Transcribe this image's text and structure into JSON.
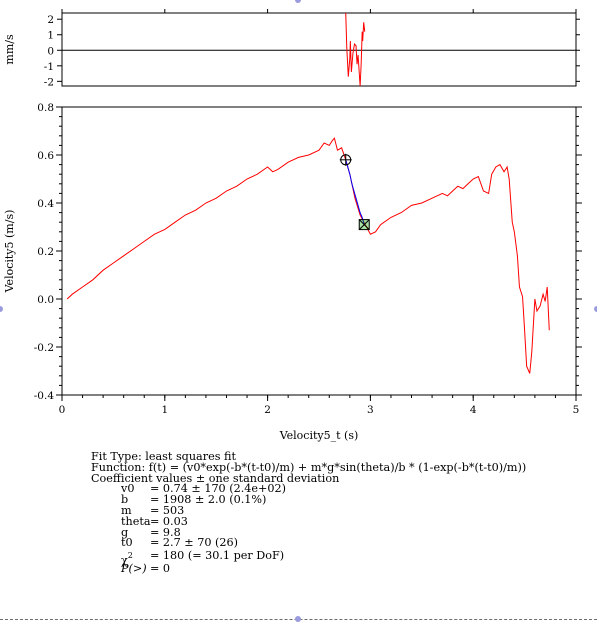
{
  "chart_data": [
    {
      "type": "line",
      "panel": "residuals",
      "ylabel": "mm/s",
      "yticks": [
        2,
        1,
        0,
        -1,
        -2
      ],
      "ylim": [
        -2.3,
        2.4
      ],
      "xlim": [
        0,
        5
      ],
      "zero_line": true,
      "series": [
        {
          "color": "#ff0000",
          "x": [
            2.76,
            2.77,
            2.785,
            2.8,
            2.805,
            2.815,
            2.83,
            2.845,
            2.86,
            2.87,
            2.88,
            2.9,
            2.91,
            2.92,
            2.925,
            2.935,
            2.945
          ],
          "y": [
            2.4,
            0.2,
            -1.7,
            -0.5,
            0.6,
            -1.4,
            -0.2,
            0.4,
            0.3,
            -0.9,
            -0.3,
            -2.3,
            -0.9,
            1.2,
            0.6,
            1.8,
            1.2
          ]
        }
      ]
    },
    {
      "type": "line",
      "panel": "main",
      "xlabel": "Velocity5_t (s)",
      "ylabel": "Velocity5 (m/s)",
      "xlim": [
        0,
        5
      ],
      "ylim": [
        -0.4,
        0.8
      ],
      "xticks": [
        0,
        1,
        2,
        3,
        4,
        5
      ],
      "yticks": [
        0.8,
        0.6,
        0.4,
        0.2,
        0.0,
        -0.2,
        -0.4
      ],
      "ytick_labels": [
        "0.8",
        "0.6",
        "0.4",
        "0.2",
        "0.0",
        "-0.2",
        "-0.4"
      ],
      "series": [
        {
          "color": "#ff0000",
          "x": [
            0.05,
            0.1,
            0.2,
            0.3,
            0.4,
            0.5,
            0.6,
            0.7,
            0.8,
            0.9,
            1.0,
            1.1,
            1.2,
            1.3,
            1.4,
            1.5,
            1.6,
            1.7,
            1.8,
            1.9,
            2.0,
            2.05,
            2.1,
            2.2,
            2.3,
            2.4,
            2.5,
            2.55,
            2.6,
            2.63,
            2.65,
            2.68,
            2.72,
            2.76,
            2.8,
            2.85,
            2.9,
            2.95,
            3.0,
            3.05,
            3.1,
            3.2,
            3.3,
            3.4,
            3.5,
            3.6,
            3.7,
            3.75,
            3.8,
            3.85,
            3.9,
            3.95,
            4.0,
            4.05,
            4.1,
            4.15,
            4.18,
            4.22,
            4.26,
            4.3,
            4.33,
            4.35,
            4.38,
            4.4,
            4.43,
            4.45,
            4.48,
            4.5,
            4.52,
            4.55,
            4.57,
            4.6,
            4.62,
            4.65,
            4.68,
            4.7,
            4.72,
            4.74
          ],
          "y": [
            0.0,
            0.02,
            0.05,
            0.08,
            0.12,
            0.15,
            0.18,
            0.21,
            0.24,
            0.27,
            0.29,
            0.32,
            0.35,
            0.37,
            0.4,
            0.42,
            0.45,
            0.47,
            0.5,
            0.52,
            0.55,
            0.53,
            0.54,
            0.57,
            0.59,
            0.6,
            0.62,
            0.65,
            0.64,
            0.66,
            0.67,
            0.62,
            0.63,
            0.58,
            0.52,
            0.42,
            0.35,
            0.31,
            0.27,
            0.28,
            0.31,
            0.34,
            0.36,
            0.39,
            0.4,
            0.42,
            0.44,
            0.43,
            0.45,
            0.47,
            0.46,
            0.48,
            0.5,
            0.51,
            0.45,
            0.44,
            0.52,
            0.55,
            0.56,
            0.53,
            0.55,
            0.5,
            0.32,
            0.28,
            0.18,
            0.05,
            0.01,
            -0.13,
            -0.28,
            -0.31,
            -0.22,
            0.0,
            -0.05,
            -0.03,
            0.02,
            -0.01,
            0.05,
            -0.13
          ]
        },
        {
          "color": "#0000ff",
          "x": [
            2.76,
            2.78,
            2.8,
            2.82,
            2.84,
            2.86,
            2.88,
            2.9,
            2.92,
            2.94
          ],
          "y": [
            0.58,
            0.55,
            0.52,
            0.48,
            0.45,
            0.42,
            0.39,
            0.36,
            0.34,
            0.31
          ]
        }
      ],
      "cursor_a": {
        "x": 2.76,
        "y": 0.58
      },
      "cursor_b": {
        "x": 2.94,
        "y": 0.31
      }
    }
  ],
  "fit_info": {
    "fit_type": "Fit Type: least squares fit",
    "function": "Function: f(t) = (v0*exp(-b*(t-t0)/m) + m*g*sin(theta)/b * (1-exp(-b*(t-t0)/m))",
    "coef_header": "Coefficient values ± one standard deviation",
    "coefficients": [
      {
        "name": "v0",
        "value": "= 0.74 ± 170  (2.4e+02)"
      },
      {
        "name": "b",
        "value": "= 1908 ± 2.0  (0.1%)"
      },
      {
        "name": "m",
        "value": "= 503"
      },
      {
        "name": "theta",
        "value": "= 0.03"
      },
      {
        "name": "g",
        "value": "= 9.8"
      },
      {
        "name": "t0",
        "value": "= 2.7 ± 70  (26)"
      }
    ],
    "chi_label": "χ",
    "chi_sup": "2",
    "chi_value": "= 180 (= 30.1 per DoF)",
    "p_label": "P(>)",
    "p_value": "= 0"
  },
  "colors": {
    "data": "#ff0000",
    "fit": "#0000ff",
    "cursor_circle": "#000000",
    "cursor_square_fill": "#00aa00"
  }
}
